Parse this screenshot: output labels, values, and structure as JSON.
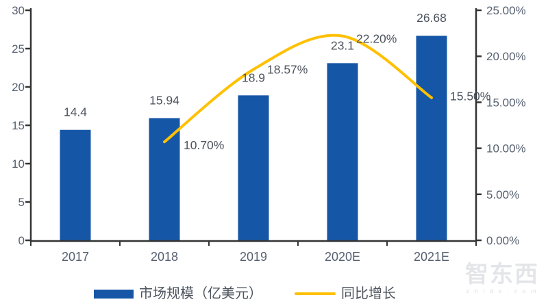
{
  "chart_data": {
    "type": "bar",
    "subtype": "bar-line-combo",
    "categories": [
      "2017",
      "2018",
      "2019",
      "2020E",
      "2021E"
    ],
    "series": [
      {
        "name": "市场规模（亿美元）",
        "type": "bar",
        "axis": "left",
        "values": [
          14.4,
          15.94,
          18.9,
          23.1,
          26.68
        ],
        "labels": [
          "14.4",
          "15.94",
          "18.9",
          "23.1",
          "26.68"
        ]
      },
      {
        "name": "同比增长",
        "type": "line",
        "axis": "right",
        "values": [
          null,
          10.7,
          18.57,
          22.2,
          15.5
        ],
        "labels": [
          "",
          "10.70%",
          "18.57%",
          "22.20%",
          "15.50%"
        ]
      }
    ],
    "title": "",
    "xlabel": "",
    "ylabel_left": "",
    "ylabel_right": "",
    "left_axis": {
      "min": 0,
      "max": 30,
      "step": 5,
      "ticks": [
        "0",
        "5",
        "10",
        "15",
        "20",
        "25",
        "30"
      ]
    },
    "right_axis": {
      "min": 0,
      "max": 25,
      "step": 5,
      "ticks": [
        "0.00%",
        "5.00%",
        "10.00%",
        "15.00%",
        "20.00%",
        "25.00%"
      ]
    },
    "grid": false,
    "legend_position": "bottom"
  },
  "legend": {
    "bar_label": "市场规模（亿美元）",
    "line_label": "同比增长"
  },
  "watermark": {
    "title": "智东西",
    "subtitle": "z h i d x . c o m"
  },
  "colors": {
    "bar": "#1656A6",
    "line": "#FFC000",
    "axis": "#333333",
    "tick_label": "#566070",
    "data_label": "#4D545E"
  }
}
